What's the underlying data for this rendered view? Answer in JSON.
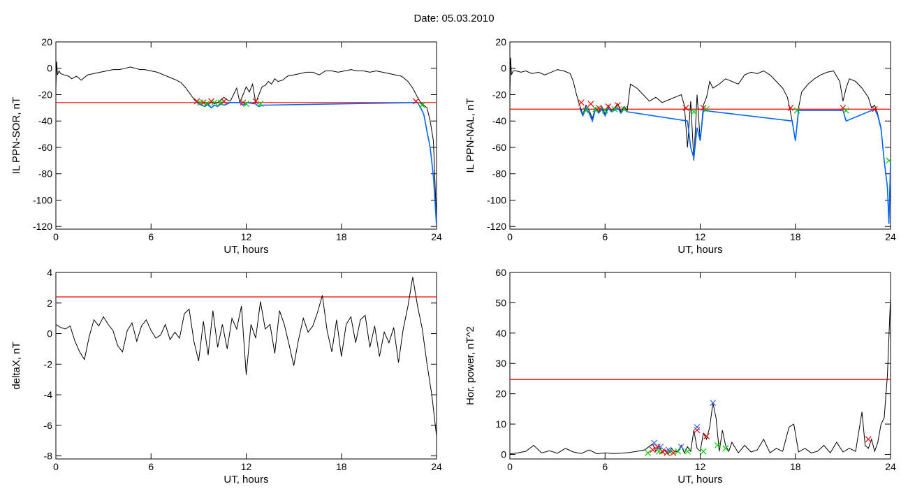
{
  "header": {
    "date_label": "Date:  05.03.2010"
  },
  "colors": {
    "trace": "#000000",
    "threshold": "#ff0000",
    "blue": "#0066ff",
    "green": "#00cc00",
    "red_marker": "#ff0000",
    "blue_marker": "#3366ff"
  },
  "chart_data": [
    {
      "type": "line",
      "title": "",
      "xlabel": "UT, hours",
      "ylabel": "IL PPN-SOR, nT",
      "xlim": [
        0,
        24
      ],
      "ylim": [
        -122,
        20
      ],
      "xticks": [
        0,
        6,
        12,
        18,
        24
      ],
      "yticks": [
        20,
        0,
        -20,
        -40,
        -60,
        -80,
        -100,
        -120
      ],
      "threshold": -26,
      "series": [
        {
          "role": "main",
          "x": [
            0,
            0.05,
            0.1,
            0.2,
            0.3,
            0.5,
            0.8,
            1.0,
            1.3,
            1.6,
            2.0,
            2.4,
            2.8,
            3.2,
            3.6,
            4.0,
            4.4,
            4.7,
            5.0,
            5.3,
            5.6,
            6.0,
            6.4,
            6.8,
            7.2,
            7.6,
            7.9,
            8.2,
            8.5,
            8.8,
            9.0,
            9.2,
            9.4,
            9.6,
            9.8,
            10.0,
            10.2,
            10.4,
            10.6,
            10.8,
            11.0,
            11.2,
            11.4,
            11.6,
            11.8,
            12.0,
            12.2,
            12.4,
            12.6,
            12.8,
            13.0,
            13.2,
            13.4,
            13.6,
            13.8,
            14.0,
            14.3,
            14.6,
            15.0,
            15.4,
            15.8,
            16.2,
            16.6,
            17.0,
            17.4,
            17.8,
            18.2,
            18.6,
            19.0,
            19.4,
            19.8,
            20.2,
            20.6,
            21.0,
            21.4,
            21.8,
            22.2,
            22.5,
            22.8,
            23.0,
            23.2,
            23.4,
            23.6,
            23.8,
            23.9,
            24.0
          ],
          "y": [
            -15,
            5,
            -5,
            -2,
            -4,
            -5,
            -6,
            -8,
            -6,
            -9,
            -5,
            -4,
            -3,
            -2,
            -1,
            -1,
            0,
            1,
            0,
            -1,
            -1,
            -2,
            -3,
            -5,
            -7,
            -9,
            -11,
            -15,
            -20,
            -25,
            -26,
            -27,
            -26,
            -27,
            -26,
            -27,
            -26,
            -24,
            -22,
            -24,
            -25,
            -20,
            -15,
            -26,
            -20,
            -14,
            -18,
            -12,
            -26,
            -20,
            -14,
            -13,
            -10,
            -12,
            -8,
            -10,
            -9,
            -6,
            -5,
            -4,
            -3,
            -3,
            -5,
            -2,
            -2,
            -3,
            -2,
            -1,
            -2,
            -2,
            -3,
            -2,
            -3,
            -4,
            -5,
            -6,
            -10,
            -15,
            -22,
            -26,
            -28,
            -30,
            -40,
            -55,
            -85,
            -118
          ]
        },
        {
          "role": "highlight",
          "x": [
            8.8,
            9.0,
            9.2,
            9.4,
            9.6,
            9.8,
            10.0,
            10.2,
            10.4,
            10.6,
            10.8,
            11.0,
            11.6,
            11.8,
            12.0,
            12.6,
            12.8,
            13.0,
            22.8,
            23.0,
            23.2,
            23.4,
            23.6,
            23.8,
            23.9,
            24.0
          ],
          "y": [
            -25,
            -27,
            -28,
            -29,
            -27,
            -30,
            -28,
            -29,
            -27,
            -28,
            -27,
            -26,
            -26,
            -28,
            -26,
            -27,
            -29,
            -28,
            -26,
            -30,
            -35,
            -48,
            -60,
            -82,
            -100,
            -120
          ]
        }
      ],
      "markers": {
        "red": [
          [
            8.9,
            -25
          ],
          [
            9.3,
            -26
          ],
          [
            9.8,
            -25
          ],
          [
            10.6,
            -25
          ],
          [
            11.8,
            -26
          ],
          [
            12.6,
            -25
          ],
          [
            22.7,
            -25
          ]
        ],
        "green": [
          [
            9.1,
            -26
          ],
          [
            9.5,
            -27
          ],
          [
            10.0,
            -26
          ],
          [
            10.4,
            -26
          ],
          [
            12.0,
            -27
          ],
          [
            12.9,
            -27
          ],
          [
            23.1,
            -28
          ]
        ]
      }
    },
    {
      "type": "line",
      "title": "",
      "xlabel": "UT, hours",
      "ylabel": "IL PPN-NAL, nT",
      "xlim": [
        0,
        24
      ],
      "ylim": [
        -122,
        20
      ],
      "xticks": [
        0,
        6,
        12,
        18,
        24
      ],
      "yticks": [
        20,
        0,
        -20,
        -40,
        -60,
        -80,
        -100,
        -120
      ],
      "threshold": -31,
      "series": [
        {
          "role": "main",
          "x": [
            0,
            0.05,
            0.1,
            0.2,
            0.4,
            0.7,
            1.0,
            1.4,
            1.8,
            2.2,
            2.6,
            3.0,
            3.4,
            3.8,
            4.0,
            4.2,
            4.4,
            4.6,
            4.8,
            5.0,
            5.2,
            5.4,
            5.6,
            5.8,
            6.0,
            6.2,
            6.4,
            6.6,
            6.8,
            7.0,
            7.2,
            7.4,
            7.6,
            8.0,
            8.4,
            8.8,
            9.2,
            9.6,
            10.0,
            10.4,
            10.8,
            11.0,
            11.2,
            11.4,
            11.6,
            11.8,
            12.0,
            12.2,
            12.4,
            12.6,
            12.8,
            13.2,
            13.6,
            14.0,
            14.4,
            14.8,
            15.2,
            15.6,
            16.0,
            16.4,
            16.8,
            17.2,
            17.5,
            17.8,
            18.0,
            18.2,
            18.4,
            18.8,
            19.2,
            19.6,
            20.0,
            20.4,
            20.8,
            21.0,
            21.2,
            21.4,
            21.8,
            22.2,
            22.6,
            22.8,
            23.0,
            23.2,
            23.4,
            23.6,
            23.8,
            23.9,
            24.0
          ],
          "y": [
            -20,
            8,
            -5,
            -2,
            -2,
            -3,
            -2,
            -4,
            -3,
            -5,
            -3,
            -1,
            -2,
            -4,
            -10,
            -20,
            -28,
            -35,
            -28,
            -32,
            -38,
            -30,
            -33,
            -29,
            -35,
            -28,
            -32,
            -30,
            -27,
            -33,
            -29,
            -32,
            -12,
            -15,
            -20,
            -25,
            -22,
            -26,
            -24,
            -22,
            -20,
            -28,
            -60,
            -25,
            -70,
            -20,
            -55,
            -28,
            -22,
            -10,
            -15,
            -12,
            -8,
            -10,
            -12,
            -5,
            -3,
            -4,
            -2,
            -5,
            -10,
            -15,
            -22,
            -40,
            -55,
            -30,
            -18,
            -12,
            -8,
            -5,
            -3,
            -2,
            -10,
            -25,
            -15,
            -8,
            -10,
            -15,
            -22,
            -30,
            -28,
            -35,
            -45,
            -70,
            -90,
            -118,
            -70
          ]
        },
        {
          "role": "highlight",
          "x": [
            4.4,
            4.6,
            4.8,
            5.0,
            5.2,
            5.4,
            5.6,
            5.8,
            6.0,
            6.2,
            6.4,
            6.6,
            6.8,
            7.0,
            7.2,
            7.4,
            11.2,
            11.4,
            11.6,
            11.8,
            12.0,
            12.2,
            17.8,
            18.0,
            18.2,
            21.0,
            21.2,
            23.0,
            23.2,
            23.4,
            23.6,
            23.8,
            23.9,
            24.0
          ],
          "y": [
            -30,
            -36,
            -30,
            -34,
            -40,
            -31,
            -34,
            -31,
            -36,
            -30,
            -33,
            -32,
            -30,
            -34,
            -31,
            -33,
            -40,
            -60,
            -68,
            -45,
            -55,
            -32,
            -40,
            -55,
            -32,
            -32,
            -40,
            -31,
            -36,
            -46,
            -70,
            -90,
            -118,
            -70
          ]
        }
      ],
      "markers": {
        "red": [
          [
            4.5,
            -26
          ],
          [
            5.1,
            -27
          ],
          [
            5.6,
            -30
          ],
          [
            6.2,
            -29
          ],
          [
            6.8,
            -28
          ],
          [
            11.1,
            -30
          ],
          [
            12.2,
            -30
          ],
          [
            17.7,
            -30
          ],
          [
            21.0,
            -30
          ],
          [
            23.0,
            -31
          ]
        ],
        "green": [
          [
            4.8,
            -32
          ],
          [
            5.4,
            -31
          ],
          [
            6.0,
            -32
          ],
          [
            6.6,
            -31
          ],
          [
            7.2,
            -31
          ],
          [
            11.6,
            -33
          ],
          [
            12.4,
            -31
          ],
          [
            18.1,
            -32
          ],
          [
            21.2,
            -32
          ],
          [
            23.9,
            -70
          ]
        ]
      }
    },
    {
      "type": "line",
      "title": "",
      "xlabel": "UT, hours",
      "ylabel": "deltaX, nT",
      "xlim": [
        0,
        24
      ],
      "ylim": [
        -8.2,
        4
      ],
      "xticks": [
        0,
        6,
        12,
        18,
        24
      ],
      "yticks": [
        4,
        2,
        0,
        -2,
        -4,
        -6,
        -8
      ],
      "threshold": 2.4,
      "series": [
        {
          "role": "main",
          "x": [
            0,
            0.3,
            0.6,
            0.9,
            1.2,
            1.5,
            1.8,
            2.1,
            2.4,
            2.7,
            3.0,
            3.3,
            3.6,
            3.9,
            4.2,
            4.5,
            4.8,
            5.1,
            5.4,
            5.7,
            6.0,
            6.3,
            6.6,
            6.9,
            7.2,
            7.5,
            7.8,
            8.1,
            8.4,
            8.7,
            9.0,
            9.3,
            9.6,
            9.9,
            10.2,
            10.5,
            10.8,
            11.1,
            11.4,
            11.7,
            12.0,
            12.3,
            12.6,
            12.9,
            13.2,
            13.5,
            13.8,
            14.1,
            14.4,
            14.7,
            15.0,
            15.3,
            15.6,
            15.9,
            16.2,
            16.5,
            16.8,
            17.1,
            17.4,
            17.7,
            18.0,
            18.3,
            18.6,
            18.9,
            19.2,
            19.5,
            19.8,
            20.1,
            20.4,
            20.7,
            21.0,
            21.3,
            21.6,
            21.9,
            22.2,
            22.5,
            22.8,
            23.1,
            23.4,
            23.7,
            24.0
          ],
          "y": [
            0.6,
            0.4,
            0.3,
            0.5,
            -0.5,
            -1.2,
            -1.7,
            -0.2,
            0.9,
            0.5,
            1.1,
            0.6,
            0.2,
            -0.8,
            -1.2,
            0.2,
            0.7,
            -0.5,
            0.5,
            0.9,
            0.2,
            -0.3,
            -0.1,
            0.6,
            -0.4,
            0.1,
            -0.3,
            1.3,
            1.6,
            -0.5,
            -1.8,
            0.8,
            -1.4,
            1.5,
            -0.9,
            0.6,
            -1.0,
            1.0,
            0.3,
            1.8,
            -2.7,
            0.6,
            -0.3,
            2.1,
            0.3,
            0.6,
            -1.3,
            1.5,
            0.6,
            -0.7,
            -2.1,
            -0.4,
            1.0,
            0.1,
            0.5,
            1.4,
            2.5,
            0.2,
            -1.2,
            0.9,
            -1.5,
            0.6,
            1.1,
            -0.6,
            0.9,
            1.2,
            -0.9,
            0.5,
            -1.5,
            0.1,
            -0.6,
            0.4,
            -1.9,
            0.3,
            1.8,
            3.7,
            1.8,
            0.3,
            -2.0,
            -4.0,
            -6.7
          ]
        }
      ],
      "markers": {
        "red": [],
        "green": []
      }
    },
    {
      "type": "line",
      "title": "",
      "xlabel": "UT, hours",
      "ylabel": "Hor. power, nT^2",
      "xlim": [
        0,
        24
      ],
      "ylim": [
        -1.5,
        60
      ],
      "xticks": [
        0,
        6,
        12,
        18,
        24
      ],
      "yticks": [
        60,
        50,
        40,
        30,
        20,
        10,
        0
      ],
      "threshold": 24.7,
      "series": [
        {
          "role": "main",
          "x": [
            0,
            0.5,
            1.0,
            1.5,
            2.0,
            2.5,
            3.0,
            3.5,
            4.0,
            4.5,
            5.0,
            5.5,
            6.0,
            6.5,
            7.0,
            7.5,
            8.0,
            8.5,
            9.0,
            9.2,
            9.4,
            9.6,
            9.8,
            10.0,
            10.2,
            10.4,
            10.6,
            10.8,
            11.0,
            11.2,
            11.4,
            11.6,
            11.8,
            12.0,
            12.2,
            12.4,
            12.6,
            12.8,
            13.0,
            13.2,
            13.4,
            13.6,
            13.8,
            14.0,
            14.4,
            14.8,
            15.2,
            15.6,
            16.0,
            16.4,
            16.8,
            17.2,
            17.6,
            17.9,
            18.2,
            18.6,
            19.0,
            19.4,
            19.8,
            20.2,
            20.6,
            21.0,
            21.4,
            21.8,
            22.2,
            22.4,
            22.6,
            22.8,
            23.0,
            23.2,
            23.4,
            23.6,
            23.8,
            24.0
          ],
          "y": [
            0.2,
            0.5,
            1.0,
            3.0,
            0.5,
            1.2,
            0.4,
            2.0,
            0.8,
            0.3,
            1.5,
            0.2,
            0.5,
            0.3,
            0.4,
            0.6,
            1.0,
            1.5,
            3.5,
            1.0,
            3.0,
            0.5,
            1.5,
            0.3,
            2.0,
            0.8,
            1.0,
            3.0,
            0.5,
            2.5,
            1.0,
            8.0,
            2.0,
            1.0,
            7.0,
            5.0,
            9.0,
            17.0,
            12.0,
            1.0,
            8.0,
            3.0,
            1.0,
            4.0,
            0.5,
            3.0,
            0.8,
            1.5,
            5.0,
            0.5,
            2.0,
            1.0,
            9.0,
            10.0,
            0.8,
            2.0,
            0.5,
            1.0,
            3.0,
            0.5,
            4.0,
            0.8,
            2.0,
            1.0,
            14.0,
            3.0,
            2.0,
            5.0,
            1.0,
            4.0,
            10.0,
            12.0,
            26.0,
            52.0
          ]
        }
      ],
      "markers": {
        "red": [
          [
            9.0,
            1.5
          ],
          [
            9.3,
            2.5
          ],
          [
            9.6,
            1.0
          ],
          [
            9.9,
            0.5
          ],
          [
            10.3,
            0.5
          ],
          [
            11.8,
            8.0
          ],
          [
            12.4,
            6.0
          ],
          [
            22.6,
            5.0
          ]
        ],
        "green": [
          [
            8.7,
            0.5
          ],
          [
            9.4,
            1.0
          ],
          [
            10.1,
            0.8
          ],
          [
            10.6,
            1.0
          ],
          [
            11.2,
            1.0
          ],
          [
            12.2,
            1.0
          ],
          [
            13.1,
            3.0
          ],
          [
            13.6,
            2.0
          ]
        ],
        "blue": [
          [
            9.1,
            3.8
          ],
          [
            9.5,
            2.5
          ],
          [
            10.0,
            1.5
          ],
          [
            10.8,
            2.5
          ],
          [
            11.8,
            9.0
          ],
          [
            12.8,
            17.0
          ]
        ]
      }
    }
  ]
}
